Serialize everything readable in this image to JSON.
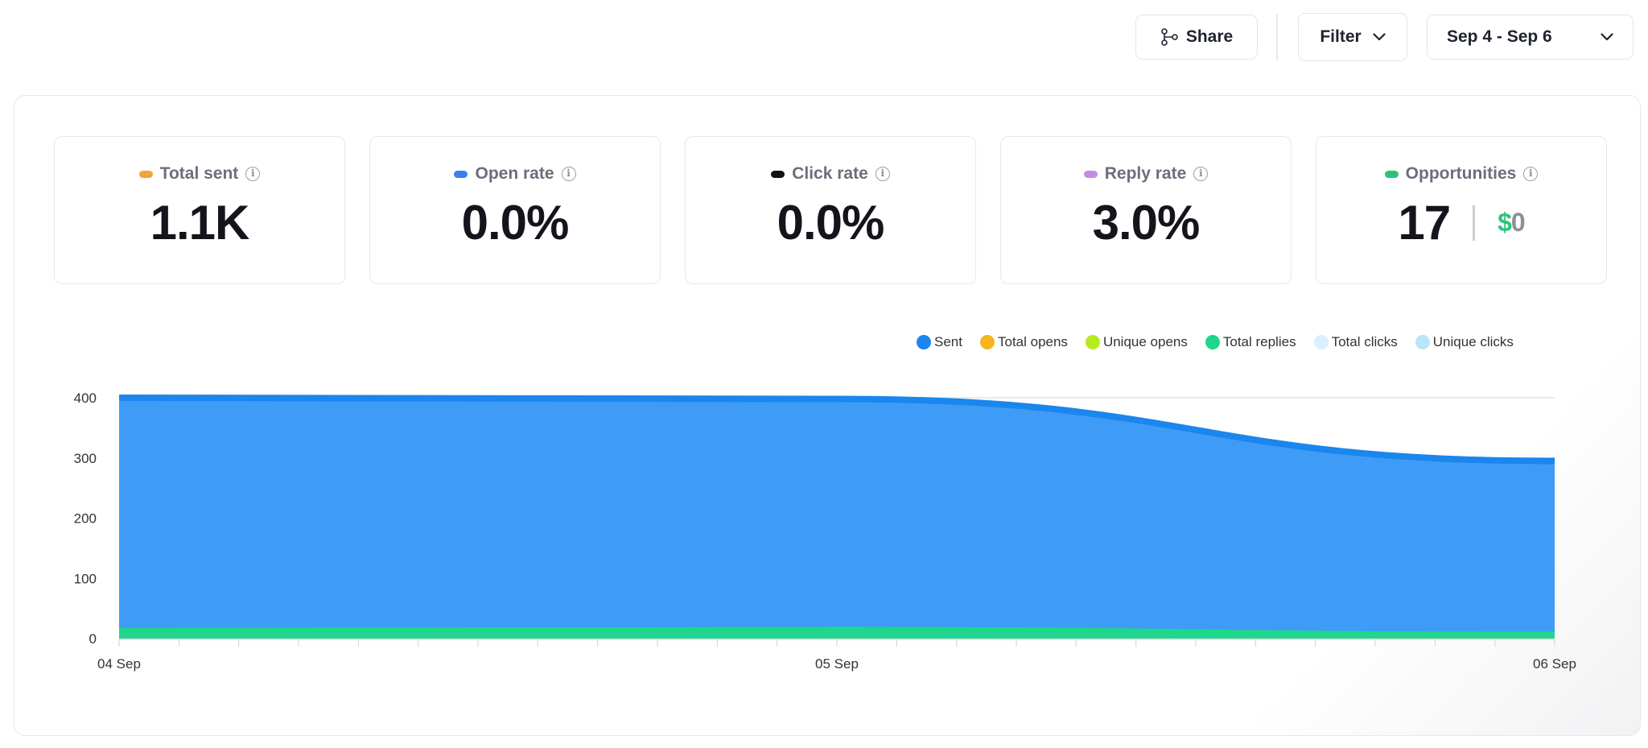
{
  "toolbar": {
    "share_label": "Share",
    "share_icon": "share-icon",
    "filter_label": "Filter",
    "date_range": "Sep 4 - Sep 6"
  },
  "kpis": [
    {
      "label": "Total sent",
      "value": "1.1K",
      "color": "#f2a43a"
    },
    {
      "label": "Open rate",
      "value": "0.0%",
      "color": "#3b7ff0"
    },
    {
      "label": "Click rate",
      "value": "0.0%",
      "color": "#111111"
    },
    {
      "label": "Reply rate",
      "value": "3.0%",
      "color": "#c48be6"
    },
    {
      "label": "Opportunities",
      "value": "17",
      "money_symbol": "$",
      "money_value": "0",
      "color": "#2bc37a"
    }
  ],
  "legend": [
    {
      "name": "Sent",
      "color": "#1a86ee"
    },
    {
      "name": "Total opens",
      "color": "#f7b51d"
    },
    {
      "name": "Unique opens",
      "color": "#b6ec1e"
    },
    {
      "name": "Total replies",
      "color": "#1ed889"
    },
    {
      "name": "Total clicks",
      "color": "#dcefff"
    },
    {
      "name": "Unique clicks",
      "color": "#b9e6f7"
    }
  ],
  "chart_data": {
    "type": "area",
    "x": [
      "04 Sep",
      "05 Sep",
      "06 Sep"
    ],
    "yticks": [
      0,
      100,
      200,
      300,
      400
    ],
    "ylim": [
      0,
      400
    ],
    "grid": true,
    "legend_position": "top-right",
    "series": [
      {
        "name": "Sent",
        "values": [
          400,
          398,
          295
        ],
        "color": "#1a86ee"
      },
      {
        "name": "Total opens",
        "values": [
          0,
          0,
          0
        ],
        "color": "#f7b51d"
      },
      {
        "name": "Unique opens",
        "values": [
          0,
          0,
          0
        ],
        "color": "#b6ec1e"
      },
      {
        "name": "Total replies",
        "values": [
          14,
          16,
          8
        ],
        "color": "#1ed889"
      },
      {
        "name": "Total clicks",
        "values": [
          0,
          0,
          0
        ],
        "color": "#dcefff"
      },
      {
        "name": "Unique clicks",
        "values": [
          0,
          0,
          0
        ],
        "color": "#b9e6f7"
      }
    ]
  }
}
